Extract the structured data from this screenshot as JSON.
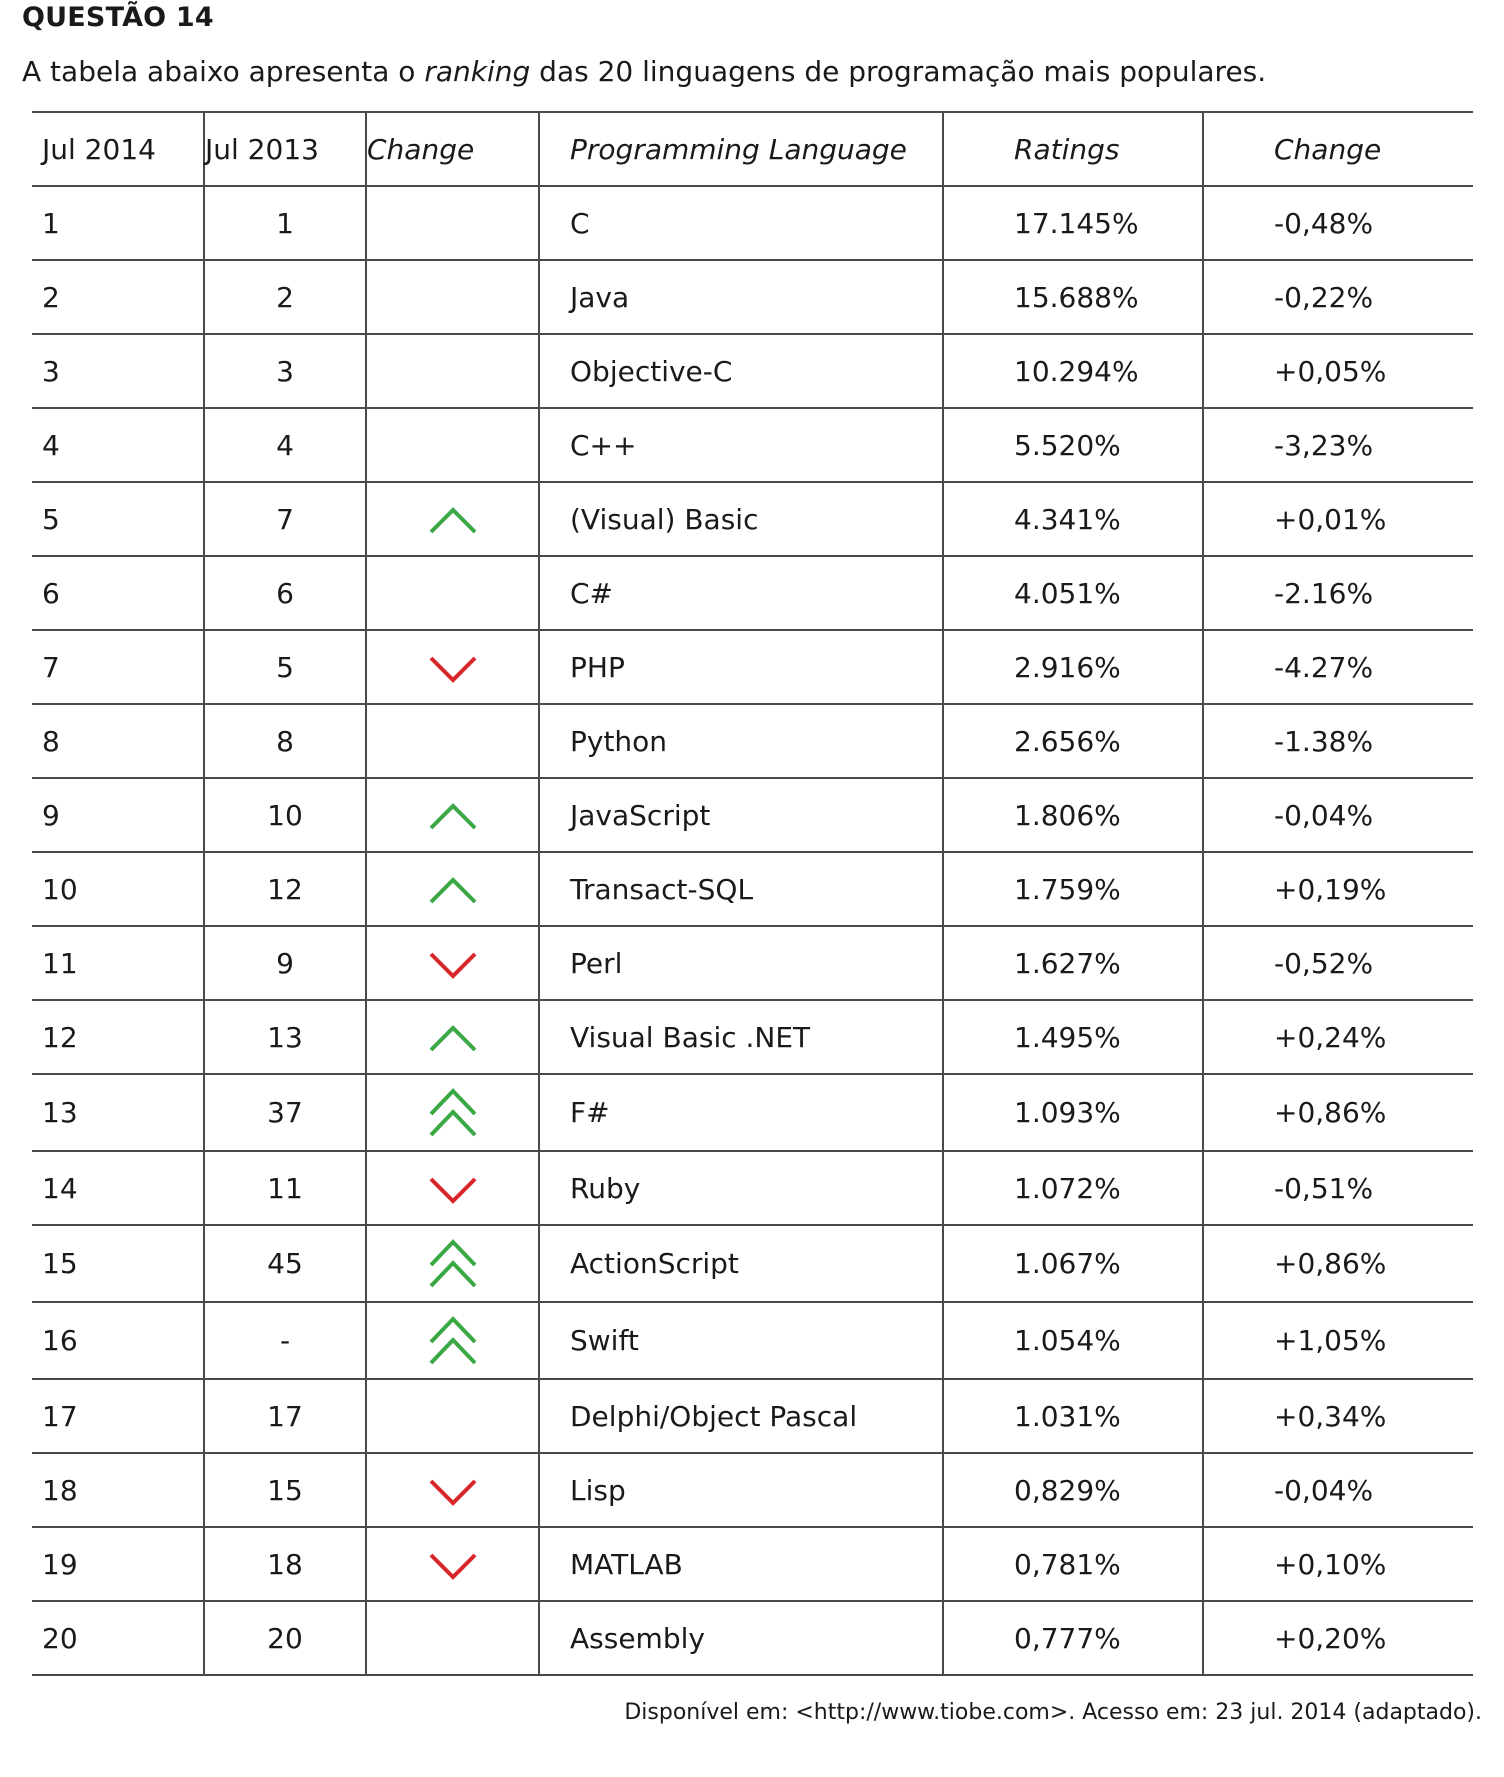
{
  "question_title": "QUESTÃO 14",
  "intro": {
    "before": "A tabela abaixo apresenta o ",
    "emphasis": "ranking",
    "after": " das 20 linguagens de programação mais populares."
  },
  "table": {
    "headers": [
      "Jul 2014",
      "Jul 2013",
      "Change",
      "Programming Language",
      "Ratings",
      "Change"
    ],
    "rows": [
      {
        "jul2014": "1",
        "jul2013": "1",
        "trend": "none",
        "language": "C",
        "rating": "17.145%",
        "change": "-0,48%"
      },
      {
        "jul2014": "2",
        "jul2013": "2",
        "trend": "none",
        "language": "Java",
        "rating": "15.688%",
        "change": "-0,22%"
      },
      {
        "jul2014": "3",
        "jul2013": "3",
        "trend": "none",
        "language": "Objective-C",
        "rating": "10.294%",
        "change": "+0,05%"
      },
      {
        "jul2014": "4",
        "jul2013": "4",
        "trend": "none",
        "language": "C++",
        "rating": "5.520%",
        "change": "-3,23%"
      },
      {
        "jul2014": "5",
        "jul2013": "7",
        "trend": "up",
        "language": "(Visual) Basic",
        "rating": "4.341%",
        "change": "+0,01%"
      },
      {
        "jul2014": "6",
        "jul2013": "6",
        "trend": "none",
        "language": "C#",
        "rating": "4.051%",
        "change": "-2.16%"
      },
      {
        "jul2014": "7",
        "jul2013": "5",
        "trend": "down",
        "language": "PHP",
        "rating": "2.916%",
        "change": "-4.27%"
      },
      {
        "jul2014": "8",
        "jul2013": "8",
        "trend": "none",
        "language": "Python",
        "rating": "2.656%",
        "change": "-1.38%"
      },
      {
        "jul2014": "9",
        "jul2013": "10",
        "trend": "up",
        "language": "JavaScript",
        "rating": "1.806%",
        "change": "-0,04%"
      },
      {
        "jul2014": "10",
        "jul2013": "12",
        "trend": "up",
        "language": "Transact-SQL",
        "rating": "1.759%",
        "change": "+0,19%"
      },
      {
        "jul2014": "11",
        "jul2013": "9",
        "trend": "down",
        "language": "Perl",
        "rating": "1.627%",
        "change": "-0,52%"
      },
      {
        "jul2014": "12",
        "jul2013": "13",
        "trend": "up",
        "language": "Visual Basic .NET",
        "rating": "1.495%",
        "change": "+0,24%"
      },
      {
        "jul2014": "13",
        "jul2013": "37",
        "trend": "double-up",
        "language": "F#",
        "rating": "1.093%",
        "change": "+0,86%"
      },
      {
        "jul2014": "14",
        "jul2013": "11",
        "trend": "down",
        "language": "Ruby",
        "rating": "1.072%",
        "change": "-0,51%"
      },
      {
        "jul2014": "15",
        "jul2013": "45",
        "trend": "double-up",
        "language": "ActionScript",
        "rating": "1.067%",
        "change": "+0,86%"
      },
      {
        "jul2014": "16",
        "jul2013": "-",
        "trend": "double-up",
        "language": "Swift",
        "rating": "1.054%",
        "change": "+1,05%"
      },
      {
        "jul2014": "17",
        "jul2013": "17",
        "trend": "none",
        "language": "Delphi/Object Pascal",
        "rating": "1.031%",
        "change": "+0,34%"
      },
      {
        "jul2014": "18",
        "jul2013": "15",
        "trend": "down",
        "language": "Lisp",
        "rating": "0,829%",
        "change": "-0,04%"
      },
      {
        "jul2014": "19",
        "jul2013": "18",
        "trend": "down",
        "language": "MATLAB",
        "rating": "0,781%",
        "change": "+0,10%"
      },
      {
        "jul2014": "20",
        "jul2013": "20",
        "trend": "none",
        "language": "Assembly",
        "rating": "0,777%",
        "change": "+0,20%"
      }
    ]
  },
  "source": "Disponível em: <http://www.tiobe.com>. Acesso em: 23 jul. 2014 (adaptado).",
  "colors": {
    "up_arrow": "#3aa845",
    "down_arrow": "#d9262b"
  }
}
